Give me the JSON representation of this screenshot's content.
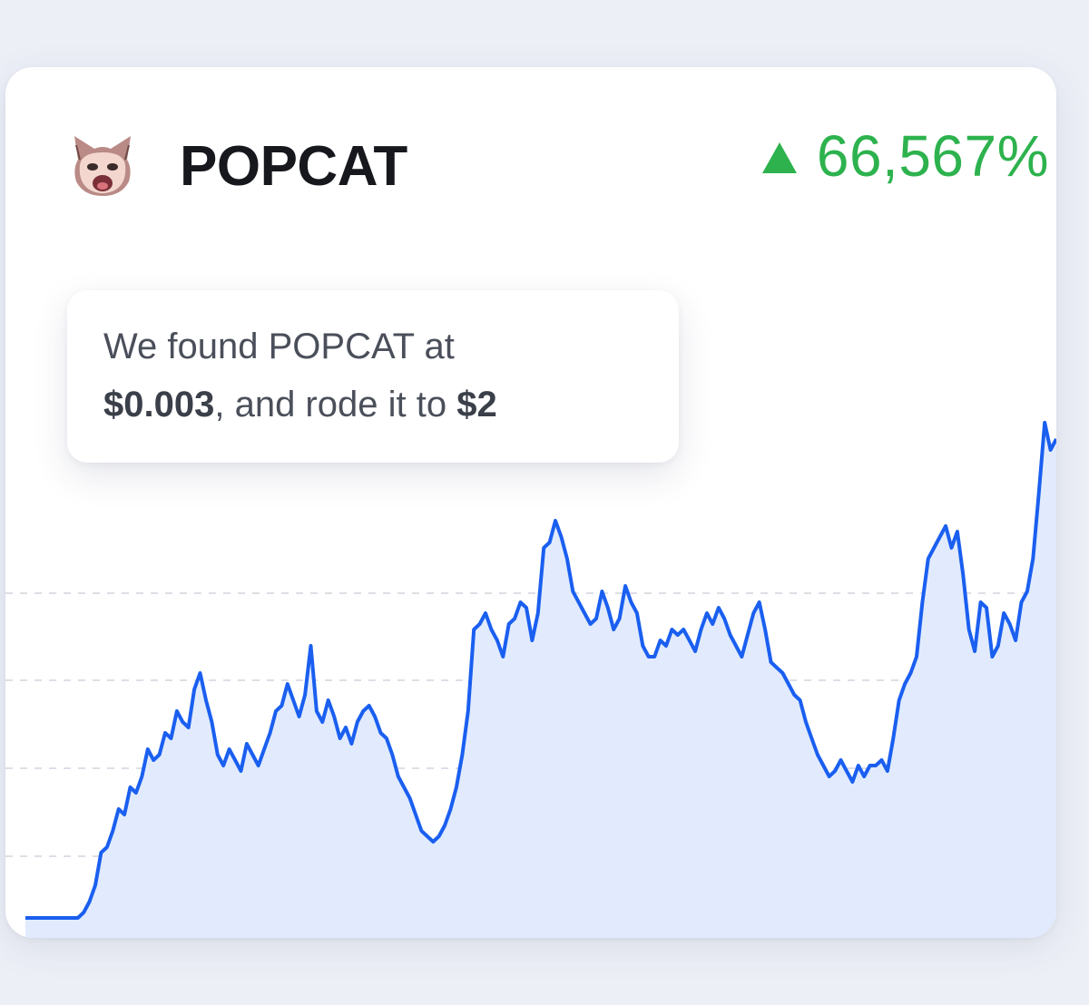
{
  "token": {
    "name": "POPCAT",
    "logo_icon": "popcat-logo-icon"
  },
  "change": {
    "direction_icon": "triangle-up-icon",
    "value": "66,567%",
    "color": "#2db24e"
  },
  "callout": {
    "text_1": "We found POPCAT at",
    "price_from": "$0.003",
    "text_2": ", and rode it to",
    "price_to": "$2"
  },
  "chart_data": {
    "type": "area",
    "title": "",
    "xlabel": "",
    "ylabel": "",
    "grid": "horizontal dashed",
    "line_color": "#1a5ff0",
    "fill_color": "#e1ebfd",
    "ylim": [
      0,
      100
    ],
    "values": [
      2,
      2,
      2,
      2,
      2,
      2,
      2,
      2,
      2,
      2,
      3,
      5,
      8,
      14,
      15,
      18,
      22,
      21,
      26,
      25,
      28,
      33,
      31,
      32,
      36,
      35,
      40,
      38,
      37,
      44,
      47,
      42,
      38,
      32,
      30,
      33,
      31,
      29,
      34,
      32,
      30,
      33,
      36,
      40,
      41,
      45,
      42,
      39,
      43,
      52,
      40,
      38,
      42,
      39,
      35,
      37,
      34,
      38,
      40,
      41,
      39,
      36,
      35,
      32,
      28,
      26,
      24,
      21,
      18,
      17,
      16,
      17,
      19,
      22,
      26,
      32,
      40,
      55,
      56,
      58,
      55,
      53,
      50,
      56,
      57,
      60,
      59,
      53,
      58,
      70,
      71,
      75,
      72,
      68,
      62,
      60,
      58,
      56,
      57,
      62,
      59,
      55,
      57,
      63,
      60,
      58,
      52,
      50,
      50,
      53,
      52,
      55,
      54,
      55,
      53,
      51,
      55,
      58,
      56,
      59,
      57,
      54,
      52,
      50,
      54,
      58,
      60,
      55,
      49,
      48,
      47,
      45,
      43,
      42,
      38,
      35,
      32,
      30,
      28,
      29,
      31,
      29,
      27,
      30,
      28,
      30,
      30,
      31,
      29,
      35,
      42,
      45,
      47,
      50,
      60,
      68,
      70,
      72,
      74,
      70,
      73,
      65,
      55,
      51,
      60,
      59,
      50,
      52,
      58,
      56,
      53,
      60,
      62,
      68,
      80,
      93,
      88,
      90
    ]
  }
}
